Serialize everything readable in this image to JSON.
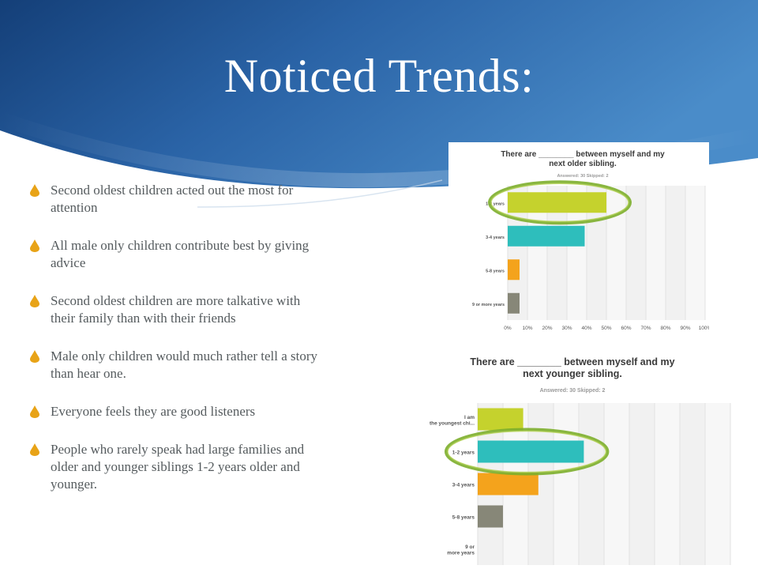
{
  "slide": {
    "title": "Noticed Trends:",
    "accent_color": "#e8a317",
    "header_colors": [
      "#1c4f8f",
      "#2c69ad",
      "#3f86c4"
    ]
  },
  "bullets": [
    {
      "text": "Second oldest children acted out the most for attention"
    },
    {
      "text": "All male only children contribute best by giving advice"
    },
    {
      "text": "Second oldest children are more talkative with their family than with their friends"
    },
    {
      "text": "Male only children would much rather tell a story than hear one."
    },
    {
      "text": "Everyone feels they are good listeners"
    },
    {
      "text": "People who rarely speak had large families and older and younger siblings 1-2 years older and younger."
    }
  ],
  "chart_data": [
    {
      "type": "bar",
      "orientation": "horizontal",
      "title_lines": [
        "There are ________ between myself and my",
        "next  older sibling."
      ],
      "stats": "Answered: 30    Skipped: 2",
      "categories": [
        "1-2 years",
        "3-4 years",
        "5-8 years",
        "9 or more years"
      ],
      "values": [
        50,
        39,
        6,
        6
      ],
      "colors": [
        "#c5d22d",
        "#2ebebc",
        "#f4a31c",
        "#878778"
      ],
      "x_ticks": [
        "0%",
        "10%",
        "20%",
        "30%",
        "40%",
        "50%",
        "60%",
        "70%",
        "80%",
        "90%",
        "100%"
      ],
      "xlim": [
        0,
        100
      ],
      "grid": true,
      "highlighted_category": "1-2 years",
      "highlight_color": "#7cae2b"
    },
    {
      "type": "bar",
      "orientation": "horizontal",
      "title_lines": [
        "There are ________ between myself and my",
        "next younger sibling."
      ],
      "stats": "Answered: 30    Skipped: 2",
      "categories": [
        "I am the youngest chi...",
        "1-2 years",
        "3-4 years",
        "5-8 years",
        "9 or more years"
      ],
      "values": [
        18,
        42,
        24,
        10,
        0
      ],
      "colors": [
        "#c5d22d",
        "#2ebebc",
        "#f4a31c",
        "#878778",
        "#878778"
      ],
      "xlim": [
        0,
        100
      ],
      "grid": true,
      "highlighted_category": "1-2 years",
      "highlight_color": "#7cae2b"
    }
  ]
}
